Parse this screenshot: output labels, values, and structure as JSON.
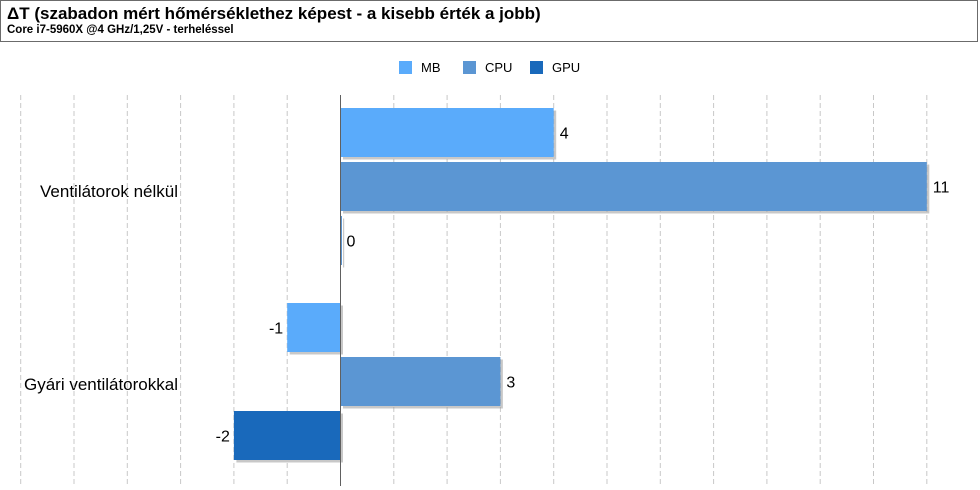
{
  "header": {
    "title": "ΔT (szabadon mért hőmérséklethez képest - a kisebb érték a jobb)",
    "subtitle": "Core i7-5960X @4 GHz/1,25V - terheléssel"
  },
  "colors": {
    "mb": "#5aabfb",
    "cpu": "#5b96d3",
    "gpu": "#1969bb",
    "grid": "#c8c8c8",
    "axis": "#606060"
  },
  "chart_data": {
    "type": "bar",
    "orientation": "horizontal",
    "title": "ΔT (szabadon mért hőmérséklethez képest - a kisebb érték a jobb)",
    "subtitle": "Core i7-5960X @4 GHz/1,25V - terheléssel",
    "categories": [
      "Ventilátorok nélkül",
      "Gyári ventilátorokkal"
    ],
    "series": [
      {
        "name": "MB",
        "values": [
          4,
          -1
        ]
      },
      {
        "name": "CPU",
        "values": [
          11,
          3
        ]
      },
      {
        "name": "GPU",
        "values": [
          0,
          -2
        ]
      }
    ],
    "xlim": [
      -6,
      12
    ],
    "grid": true,
    "legend": "top-center",
    "data_labels": true
  }
}
